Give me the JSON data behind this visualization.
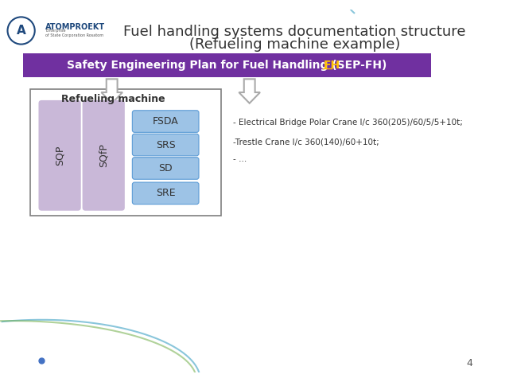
{
  "title_line1": "Fuel handling systems documentation structure",
  "title_line2": "(Refueling machine example)",
  "sep_box_text": "Safety Engineering Plan for Fuel Handling (SEP-",
  "sep_box_link": "FH",
  "sep_box_suffix": ")",
  "sep_box_color": "#7030A0",
  "sep_box_text_color": "#FFFFFF",
  "refueling_label": "Refueling machine",
  "sqp_label": "SQP",
  "sqfp_label": "SQfP",
  "blue_boxes": [
    "FSDA",
    "SRS",
    "SD",
    "SRE"
  ],
  "sqp_color": "#C9B8D8",
  "sqfp_color": "#C9B8D8",
  "blue_box_color": "#9DC3E6",
  "blue_box_border": "#5B9BD5",
  "outer_box_border": "#7F7F7F",
  "bullet_lines": [
    "- Electrical Bridge Polar Crane l/c 360(205)/60/5/5+10t;",
    "-Trestle Crane l/c 360(140)/60+10t;",
    "- …"
  ],
  "bg_color": "#FFFFFF",
  "slide_number": "4",
  "link_color": "#FFC000",
  "atomproekt_color": "#1F497D",
  "curve_teal": "#4BA8C8",
  "curve_green": "#70AD47",
  "dot_color": "#4472C4"
}
